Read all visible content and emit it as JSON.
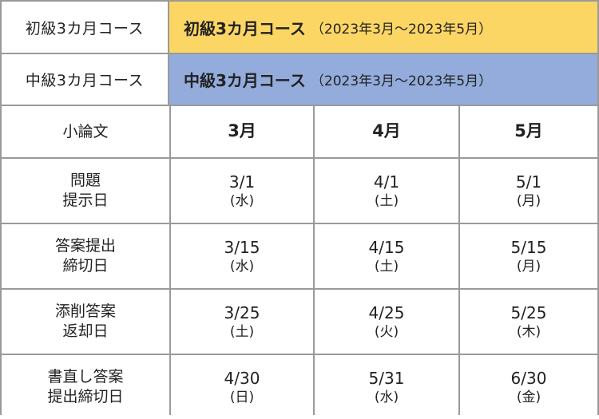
{
  "courses": [
    {
      "label": "初級3カ月コース",
      "title": "初級3カ月コース",
      "period": "（2023年3月～2023年5月）",
      "color": "#fcd664"
    },
    {
      "label": "中級3カ月コース",
      "title": "中級3カ月コース",
      "period": "（2023年3月～2023年5月）",
      "color": "#93acdc"
    }
  ],
  "schedule": {
    "corner": "小論文",
    "months": [
      "3月",
      "4月",
      "5月"
    ],
    "rows": [
      {
        "label_1": "問題",
        "label_2": "提示日",
        "cells": [
          {
            "date": "3/1",
            "wday": "(水)"
          },
          {
            "date": "4/1",
            "wday": "(土)"
          },
          {
            "date": "5/1",
            "wday": "(月)"
          }
        ]
      },
      {
        "label_1": "答案提出",
        "label_2": "締切日",
        "cells": [
          {
            "date": "3/15",
            "wday": "(水)"
          },
          {
            "date": "4/15",
            "wday": "(土)"
          },
          {
            "date": "5/15",
            "wday": "(月)"
          }
        ]
      },
      {
        "label_1": "添削答案",
        "label_2": "返却日",
        "cells": [
          {
            "date": "3/25",
            "wday": "(土)"
          },
          {
            "date": "4/25",
            "wday": "(火)"
          },
          {
            "date": "5/25",
            "wday": "(木)"
          }
        ]
      },
      {
        "label_1": "書直し答案",
        "label_2": "提出締切日",
        "cells": [
          {
            "date": "4/30",
            "wday": "(日)"
          },
          {
            "date": "5/31",
            "wday": "(水)"
          },
          {
            "date": "6/30",
            "wday": "(金)"
          }
        ]
      }
    ]
  }
}
